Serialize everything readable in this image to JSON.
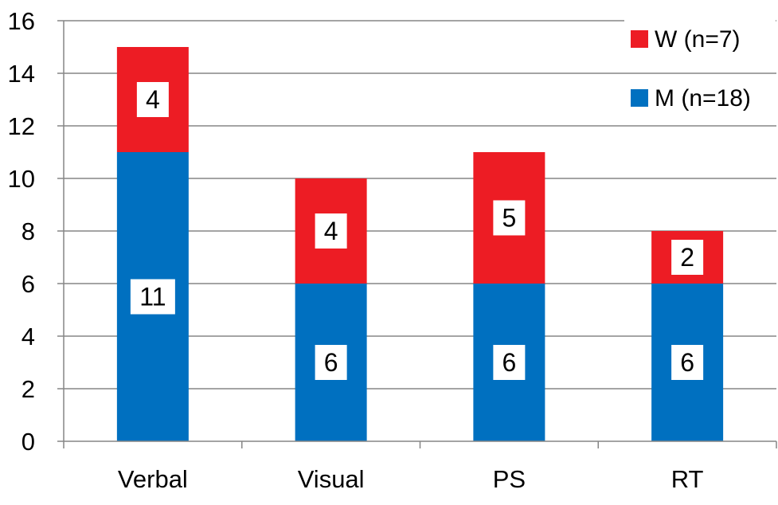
{
  "chart_data": {
    "type": "bar",
    "stacked": true,
    "categories": [
      "Verbal",
      "Visual",
      "PS",
      "RT"
    ],
    "series": [
      {
        "name": "M (n=18)",
        "values": [
          11,
          6,
          6,
          6
        ],
        "color": "#0070C0"
      },
      {
        "name": "W (n=7)",
        "values": [
          4,
          4,
          5,
          2
        ],
        "color": "#ED1C24"
      }
    ],
    "yticks": [
      "0",
      "2",
      "4",
      "6",
      "8",
      "10",
      "12",
      "14",
      "16"
    ],
    "ylim": [
      0,
      16
    ],
    "grid": true,
    "legend_position": "top-right",
    "legend_order": [
      "W (n=7)",
      "M (n=18)"
    ],
    "data_label_bg": "#ffffff"
  }
}
